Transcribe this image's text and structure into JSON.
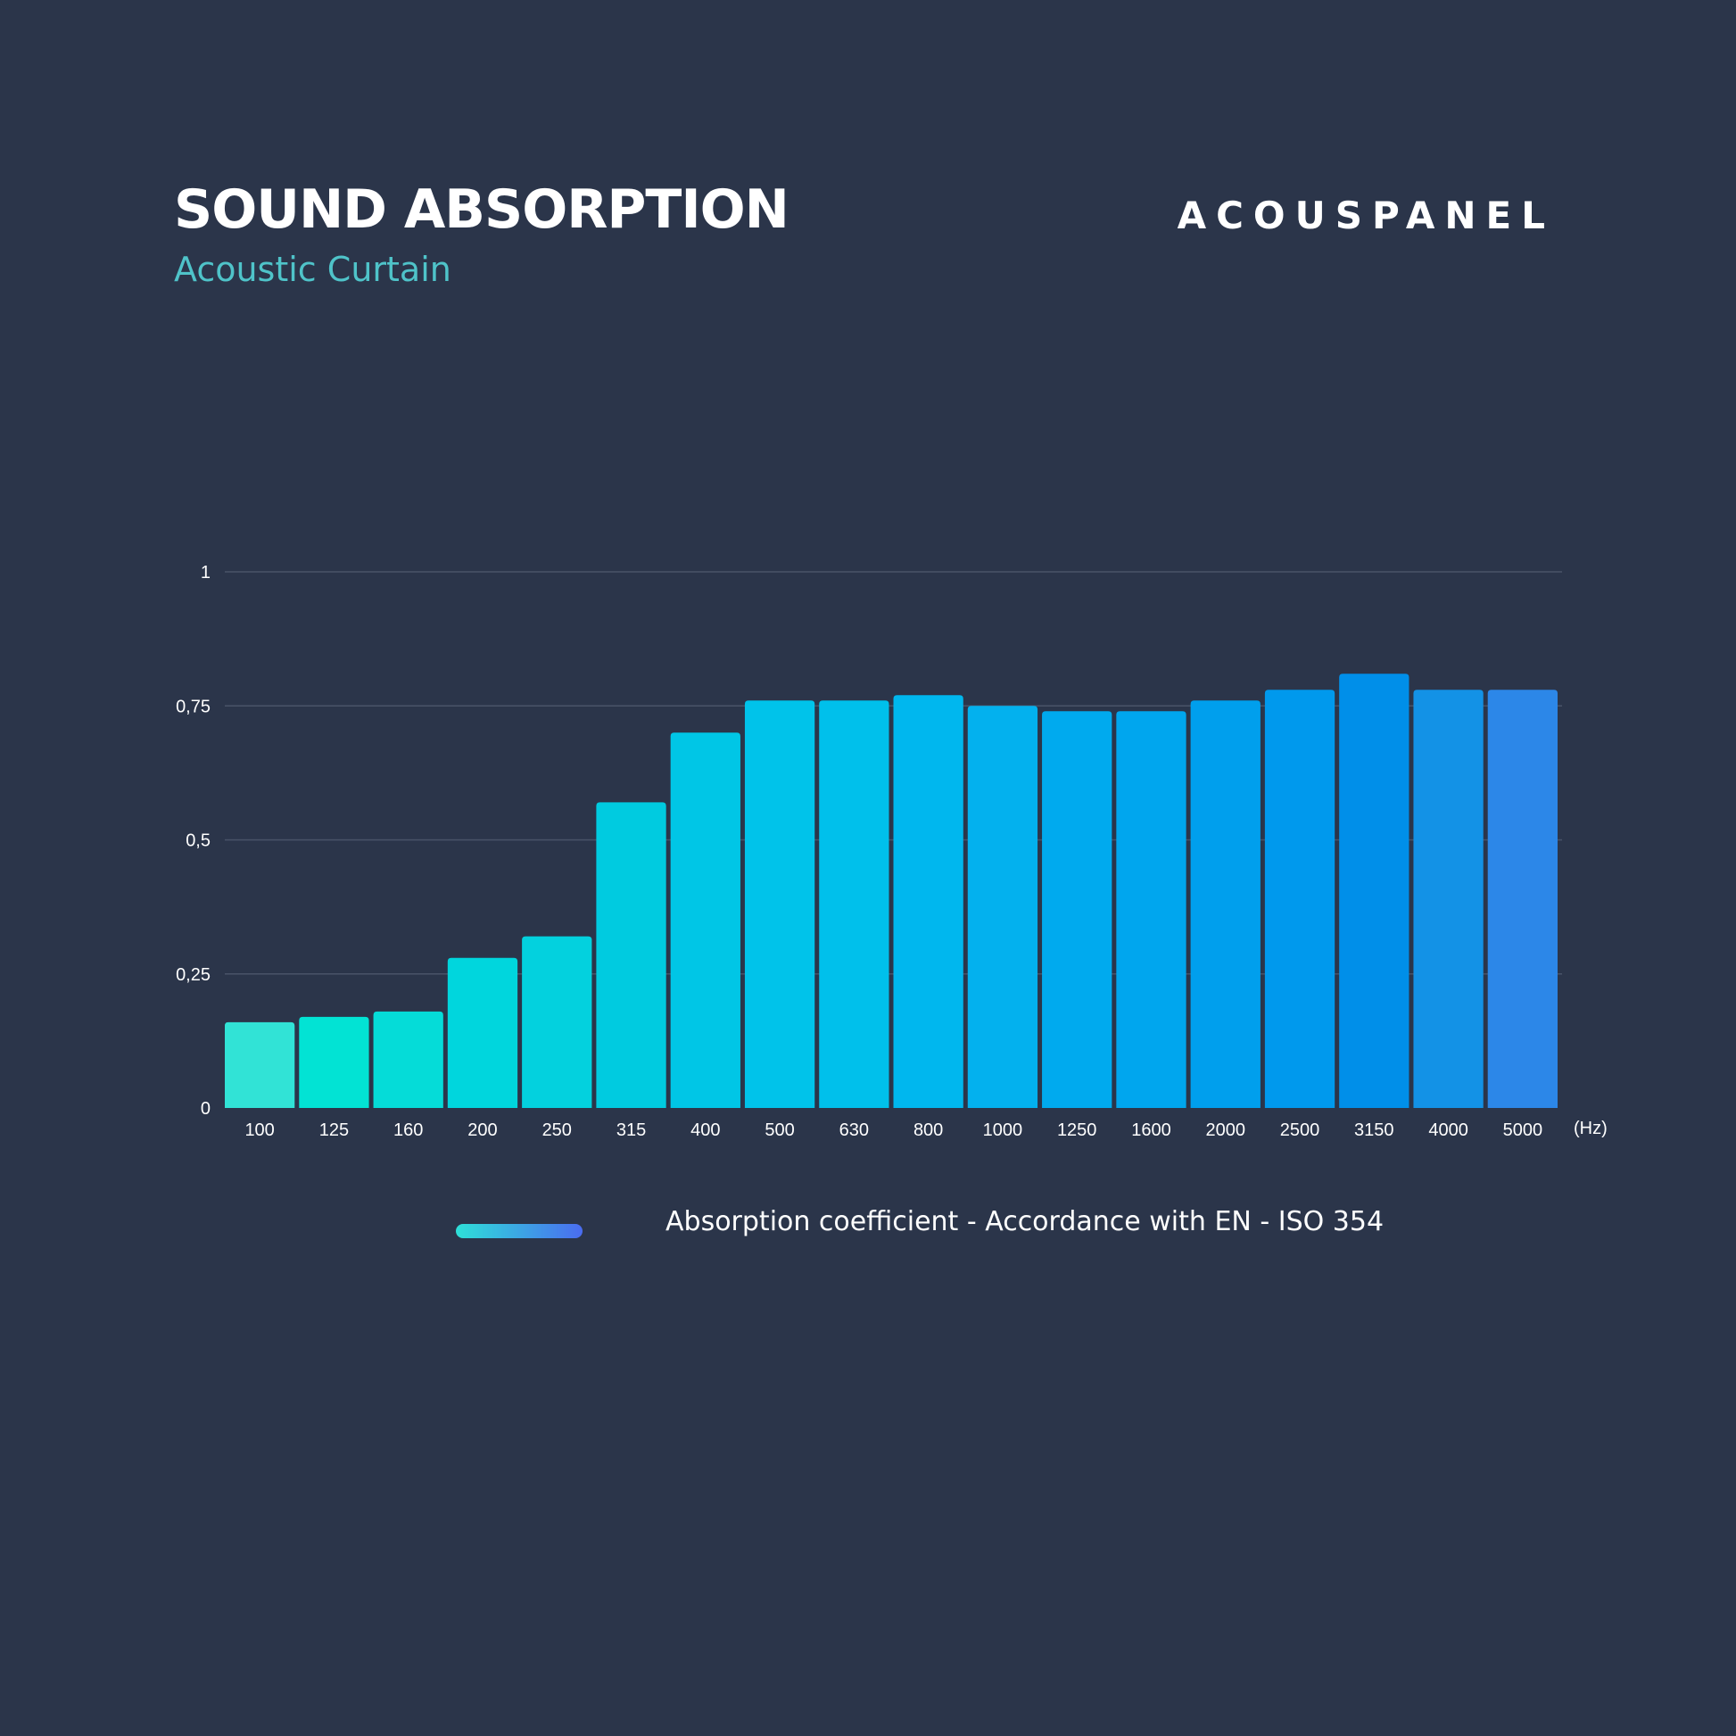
{
  "header": {
    "title": "SOUND ABSORPTION",
    "subtitle": "Acoustic Curtain",
    "brand": "ACOUSPANEL"
  },
  "colors": {
    "background": "#2b354a",
    "subtitle": "#4fc3c9",
    "gridline": "#4a5468",
    "bar_start": "#2ee6d6",
    "bar_end": "#2e86e6",
    "legend_start": "#2ee0d8",
    "legend_end": "#4a6cf0"
  },
  "chart_data": {
    "type": "bar",
    "categories": [
      "100",
      "125",
      "160",
      "200",
      "250",
      "315",
      "400",
      "500",
      "630",
      "800",
      "1000",
      "1250",
      "1600",
      "2000",
      "2500",
      "3150",
      "4000",
      "5000"
    ],
    "values": [
      0.16,
      0.17,
      0.18,
      0.28,
      0.32,
      0.57,
      0.7,
      0.76,
      0.76,
      0.77,
      0.75,
      0.74,
      0.74,
      0.76,
      0.78,
      0.81,
      0.78,
      0.78
    ],
    "bar_colors": [
      "#31e3d6",
      "#02e3d4",
      "#05dcd8",
      "#00d6dd",
      "#03d1de",
      "#00cbe0",
      "#00c6e6",
      "#00c3ea",
      "#00c0eb",
      "#00b7ee",
      "#03b1ee",
      "#00aaee",
      "#00a6ee",
      "#009fed",
      "#0099ed",
      "#008fe9",
      "#1392e6",
      "#2c87e8"
    ],
    "title": "",
    "xlabel": "(Hz)",
    "ylabel": "",
    "ylim": [
      0,
      1
    ],
    "yticks": [
      0,
      0.25,
      0.5,
      0.75,
      1
    ],
    "ytick_labels": [
      "0",
      "0,25",
      "0,5",
      "0,75",
      "1"
    ],
    "grid": true,
    "legend": {
      "position": "bottom-center",
      "label": "Absorption coefficient - Accordance with EN - ISO 354"
    }
  }
}
